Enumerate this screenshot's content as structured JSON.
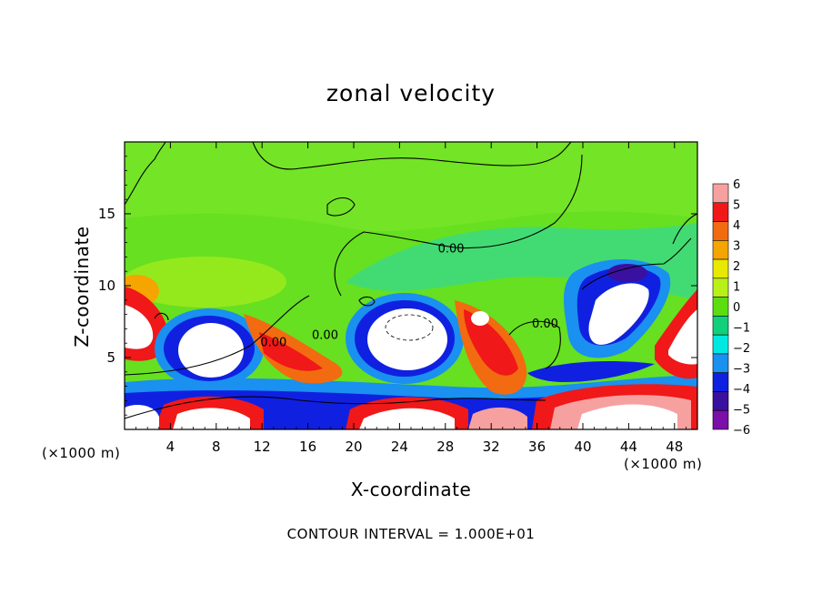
{
  "chart_data": {
    "type": "heatmap",
    "title": "zonal velocity",
    "xlabel": "X-coordinate",
    "ylabel": "Z-coordinate",
    "x_unit": "(×1000 m)",
    "xlim": [
      0,
      50
    ],
    "ylim": [
      0,
      20
    ],
    "x_ticks": [
      "4",
      "8",
      "12",
      "16",
      "20",
      "24",
      "28",
      "32",
      "36",
      "40",
      "44",
      "48"
    ],
    "x_tick_values": [
      4,
      8,
      12,
      16,
      20,
      24,
      28,
      32,
      36,
      40,
      44,
      48
    ],
    "y_ticks": [
      "5",
      "10",
      "15"
    ],
    "y_tick_values": [
      5,
      10,
      15
    ],
    "contour_labels": [
      {
        "text": "0.00",
        "x": 28.5,
        "y": 12.3
      },
      {
        "text": "0.00",
        "x": 13.0,
        "y": 5.8
      },
      {
        "text": "0.00",
        "x": 17.5,
        "y": 6.3
      },
      {
        "text": "0.00",
        "x": 36.7,
        "y": 7.1
      }
    ],
    "footnote": "CONTOUR INTERVAL = 1.000E+01",
    "colorbar": {
      "levels": [
        "6",
        "5",
        "4",
        "3",
        "2",
        "1",
        "0",
        "−1",
        "−2",
        "−3",
        "−4",
        "−5",
        "−6"
      ],
      "colors": [
        "#f7a0a0",
        "#f01818",
        "#f26b10",
        "#f5a500",
        "#e8e800",
        "#b8f018",
        "#5cdd10",
        "#10d07a",
        "#00e8e0",
        "#1a90f0",
        "#1020e0",
        "#3a10a0",
        "#7a10a8"
      ]
    }
  }
}
